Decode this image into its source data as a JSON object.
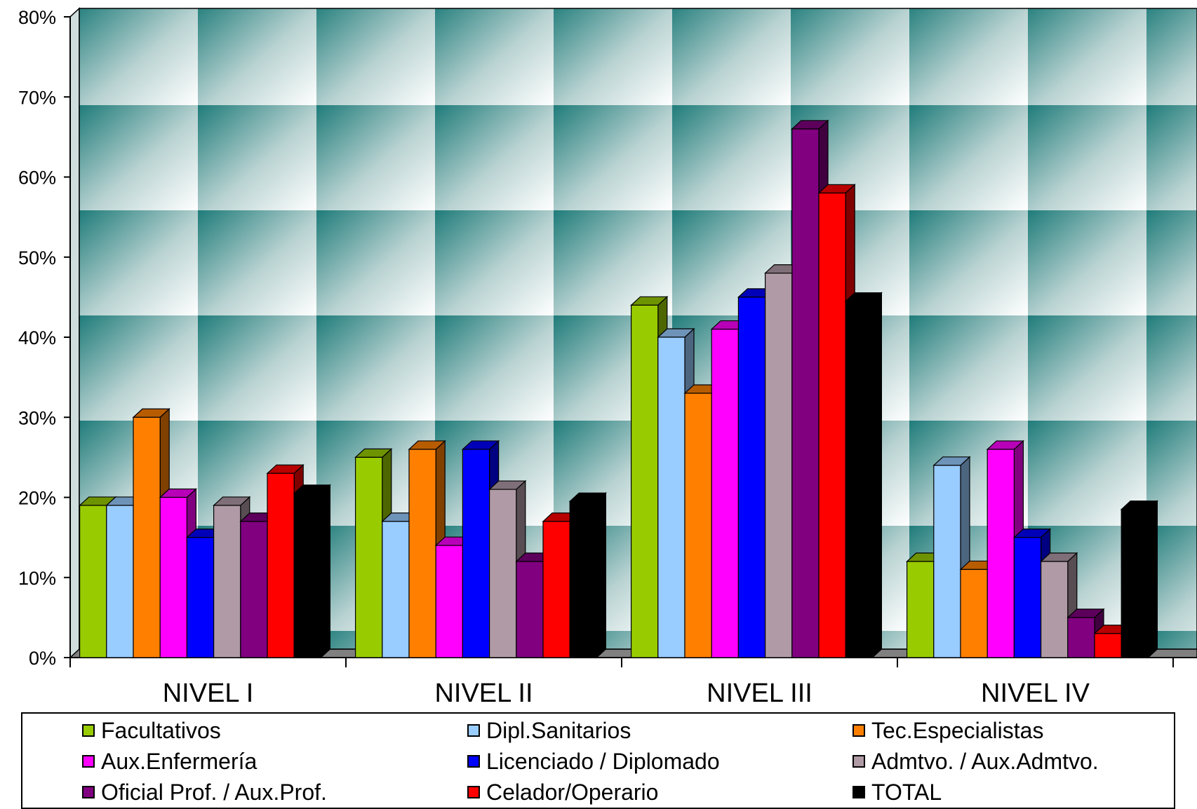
{
  "chart_data": {
    "type": "bar",
    "title": "",
    "xlabel": "",
    "ylabel": "",
    "ylim": [
      0,
      80
    ],
    "y_ticks": [
      "0%",
      "10%",
      "20%",
      "30%",
      "40%",
      "50%",
      "60%",
      "70%",
      "80%"
    ],
    "grid": false,
    "legend_position": "bottom",
    "categories": [
      "NIVEL I",
      "NIVEL II",
      "NIVEL III",
      "NIVEL IV"
    ],
    "series": [
      {
        "name": "Facultativos",
        "color": "#99cc00",
        "values": [
          19,
          25,
          44,
          12
        ]
      },
      {
        "name": "Dipl.Sanitarios",
        "color": "#99ccff",
        "values": [
          19,
          17,
          40,
          24
        ]
      },
      {
        "name": "Tec.Especialistas",
        "color": "#ff8000",
        "values": [
          30,
          26,
          33,
          11
        ]
      },
      {
        "name": "Aux.Enfermería",
        "color": "#ff00ff",
        "values": [
          20,
          14,
          41,
          26
        ]
      },
      {
        "name": "Licenciado / Diplomado",
        "color": "#0000ff",
        "values": [
          15,
          26,
          45,
          15
        ]
      },
      {
        "name": "Admtvo. / Aux.Admtvo.",
        "color": "#b09aa6",
        "values": [
          19,
          21,
          48,
          12
        ]
      },
      {
        "name": "Oficial Prof. / Aux.Prof.",
        "color": "#800080",
        "values": [
          17,
          12,
          66,
          5
        ]
      },
      {
        "name": "Celador/Operario",
        "color": "#ff0000",
        "values": [
          23,
          17,
          58,
          3
        ]
      },
      {
        "name": "TOTAL",
        "color": "#000000",
        "values": [
          20.5,
          19.5,
          44.5,
          18.5
        ]
      }
    ]
  }
}
